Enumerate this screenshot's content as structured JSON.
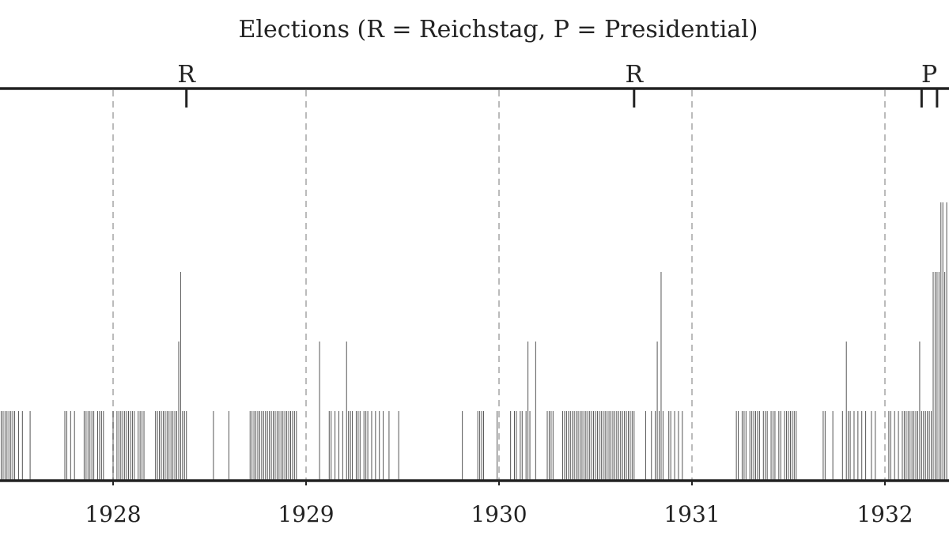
{
  "chart_data": {
    "type": "bar",
    "title": "Elections (R = Reichstag, P = Presidential)",
    "xlabel": "",
    "ylabel": "",
    "xlim": [
      1927.42,
      1932.33
    ],
    "ylim": [
      0,
      4.2
    ],
    "grid": "vertical dashed at year boundaries",
    "x_ticks": [
      "1928",
      "1929",
      "1930",
      "1931",
      "1932"
    ],
    "elections": [
      {
        "label": "R",
        "date": "1928-05-20",
        "x": 1928.38
      },
      {
        "label": "R",
        "date": "1930-09-14",
        "x": 1930.7
      },
      {
        "label": "P",
        "date": "1932-03-13",
        "x": 1932.19
      },
      {
        "label": "P",
        "date": "1932-04-10",
        "x": 1932.27
      }
    ],
    "series": [
      {
        "values": [
          [
            1927.42,
            1
          ],
          [
            1927.43,
            1
          ],
          [
            1927.44,
            1
          ],
          [
            1927.45,
            1
          ],
          [
            1927.46,
            1
          ],
          [
            1927.47,
            1
          ],
          [
            1927.48,
            1
          ],
          [
            1927.49,
            1
          ],
          [
            1927.51,
            1
          ],
          [
            1927.53,
            1
          ],
          [
            1927.57,
            1
          ],
          [
            1927.75,
            1
          ],
          [
            1927.76,
            1
          ],
          [
            1927.78,
            1
          ],
          [
            1927.8,
            1
          ],
          [
            1927.85,
            1
          ],
          [
            1927.86,
            1
          ],
          [
            1927.87,
            1
          ],
          [
            1927.88,
            1
          ],
          [
            1927.89,
            1
          ],
          [
            1927.9,
            1
          ],
          [
            1927.92,
            1
          ],
          [
            1927.93,
            1
          ],
          [
            1927.94,
            1
          ],
          [
            1927.95,
            1
          ],
          [
            1928.0,
            1
          ],
          [
            1928.02,
            1
          ],
          [
            1928.03,
            1
          ],
          [
            1928.04,
            1
          ],
          [
            1928.05,
            1
          ],
          [
            1928.06,
            1
          ],
          [
            1928.07,
            1
          ],
          [
            1928.08,
            1
          ],
          [
            1928.09,
            1
          ],
          [
            1928.1,
            1
          ],
          [
            1928.11,
            1
          ],
          [
            1928.13,
            1
          ],
          [
            1928.14,
            1
          ],
          [
            1928.15,
            1
          ],
          [
            1928.16,
            1
          ],
          [
            1928.22,
            1
          ],
          [
            1928.23,
            1
          ],
          [
            1928.24,
            1
          ],
          [
            1928.25,
            1
          ],
          [
            1928.26,
            1
          ],
          [
            1928.27,
            1
          ],
          [
            1928.28,
            1
          ],
          [
            1928.29,
            1
          ],
          [
            1928.3,
            1
          ],
          [
            1928.31,
            1
          ],
          [
            1928.32,
            1
          ],
          [
            1928.33,
            1
          ],
          [
            1928.34,
            2
          ],
          [
            1928.35,
            3
          ],
          [
            1928.36,
            1
          ],
          [
            1928.37,
            1
          ],
          [
            1928.38,
            1
          ],
          [
            1928.52,
            1
          ],
          [
            1928.6,
            1
          ],
          [
            1928.71,
            1
          ],
          [
            1928.72,
            1
          ],
          [
            1928.73,
            1
          ],
          [
            1928.74,
            1
          ],
          [
            1928.75,
            1
          ],
          [
            1928.76,
            1
          ],
          [
            1928.77,
            1
          ],
          [
            1928.78,
            1
          ],
          [
            1928.79,
            1
          ],
          [
            1928.8,
            1
          ],
          [
            1928.81,
            1
          ],
          [
            1928.82,
            1
          ],
          [
            1928.83,
            1
          ],
          [
            1928.84,
            1
          ],
          [
            1928.85,
            1
          ],
          [
            1928.86,
            1
          ],
          [
            1928.87,
            1
          ],
          [
            1928.88,
            1
          ],
          [
            1928.89,
            1
          ],
          [
            1928.9,
            1
          ],
          [
            1928.91,
            1
          ],
          [
            1928.92,
            1
          ],
          [
            1928.93,
            1
          ],
          [
            1928.94,
            1
          ],
          [
            1928.95,
            1
          ],
          [
            1929.07,
            2
          ],
          [
            1929.12,
            1
          ],
          [
            1929.13,
            1
          ],
          [
            1929.15,
            1
          ],
          [
            1929.17,
            1
          ],
          [
            1929.19,
            1
          ],
          [
            1929.21,
            2
          ],
          [
            1929.22,
            1
          ],
          [
            1929.23,
            1
          ],
          [
            1929.24,
            1
          ],
          [
            1929.26,
            1
          ],
          [
            1929.27,
            1
          ],
          [
            1929.28,
            1
          ],
          [
            1929.3,
            1
          ],
          [
            1929.31,
            1
          ],
          [
            1929.32,
            1
          ],
          [
            1929.34,
            1
          ],
          [
            1929.36,
            1
          ],
          [
            1929.38,
            1
          ],
          [
            1929.4,
            1
          ],
          [
            1929.43,
            1
          ],
          [
            1929.48,
            1
          ],
          [
            1929.81,
            1
          ],
          [
            1929.89,
            1
          ],
          [
            1929.9,
            1
          ],
          [
            1929.91,
            1
          ],
          [
            1929.92,
            1
          ],
          [
            1929.99,
            1
          ],
          [
            1930.06,
            1
          ],
          [
            1930.08,
            1
          ],
          [
            1930.09,
            1
          ],
          [
            1930.11,
            1
          ],
          [
            1930.12,
            1
          ],
          [
            1930.14,
            1
          ],
          [
            1930.15,
            2
          ],
          [
            1930.16,
            1
          ],
          [
            1930.19,
            2
          ],
          [
            1930.25,
            1
          ],
          [
            1930.26,
            1
          ],
          [
            1930.27,
            1
          ],
          [
            1930.28,
            1
          ],
          [
            1930.33,
            1
          ],
          [
            1930.34,
            1
          ],
          [
            1930.35,
            1
          ],
          [
            1930.36,
            1
          ],
          [
            1930.37,
            1
          ],
          [
            1930.38,
            1
          ],
          [
            1930.39,
            1
          ],
          [
            1930.4,
            1
          ],
          [
            1930.41,
            1
          ],
          [
            1930.42,
            1
          ],
          [
            1930.43,
            1
          ],
          [
            1930.44,
            1
          ],
          [
            1930.45,
            1
          ],
          [
            1930.46,
            1
          ],
          [
            1930.47,
            1
          ],
          [
            1930.48,
            1
          ],
          [
            1930.49,
            1
          ],
          [
            1930.5,
            1
          ],
          [
            1930.51,
            1
          ],
          [
            1930.52,
            1
          ],
          [
            1930.53,
            1
          ],
          [
            1930.54,
            1
          ],
          [
            1930.55,
            1
          ],
          [
            1930.56,
            1
          ],
          [
            1930.57,
            1
          ],
          [
            1930.58,
            1
          ],
          [
            1930.59,
            1
          ],
          [
            1930.6,
            1
          ],
          [
            1930.61,
            1
          ],
          [
            1930.62,
            1
          ],
          [
            1930.63,
            1
          ],
          [
            1930.64,
            1
          ],
          [
            1930.65,
            1
          ],
          [
            1930.66,
            1
          ],
          [
            1930.67,
            1
          ],
          [
            1930.68,
            1
          ],
          [
            1930.69,
            1
          ],
          [
            1930.7,
            1
          ],
          [
            1930.76,
            1
          ],
          [
            1930.79,
            1
          ],
          [
            1930.81,
            1
          ],
          [
            1930.82,
            2
          ],
          [
            1930.83,
            1
          ],
          [
            1930.84,
            3
          ],
          [
            1930.85,
            1
          ],
          [
            1930.88,
            1
          ],
          [
            1930.89,
            1
          ],
          [
            1930.91,
            1
          ],
          [
            1930.93,
            1
          ],
          [
            1930.95,
            1
          ],
          [
            1931.23,
            1
          ],
          [
            1931.24,
            1
          ],
          [
            1931.26,
            1
          ],
          [
            1931.27,
            1
          ],
          [
            1931.28,
            1
          ],
          [
            1931.3,
            1
          ],
          [
            1931.31,
            1
          ],
          [
            1931.32,
            1
          ],
          [
            1931.33,
            1
          ],
          [
            1931.34,
            1
          ],
          [
            1931.35,
            1
          ],
          [
            1931.37,
            1
          ],
          [
            1931.38,
            1
          ],
          [
            1931.39,
            1
          ],
          [
            1931.41,
            1
          ],
          [
            1931.42,
            1
          ],
          [
            1931.43,
            1
          ],
          [
            1931.45,
            1
          ],
          [
            1931.46,
            1
          ],
          [
            1931.48,
            1
          ],
          [
            1931.49,
            1
          ],
          [
            1931.5,
            1
          ],
          [
            1931.51,
            1
          ],
          [
            1931.52,
            1
          ],
          [
            1931.53,
            1
          ],
          [
            1931.54,
            1
          ],
          [
            1931.68,
            1
          ],
          [
            1931.69,
            1
          ],
          [
            1931.73,
            1
          ],
          [
            1931.78,
            1
          ],
          [
            1931.8,
            2
          ],
          [
            1931.81,
            1
          ],
          [
            1931.82,
            1
          ],
          [
            1931.84,
            1
          ],
          [
            1931.86,
            1
          ],
          [
            1931.88,
            1
          ],
          [
            1931.9,
            1
          ],
          [
            1931.93,
            1
          ],
          [
            1931.95,
            1
          ],
          [
            1932.02,
            1
          ],
          [
            1932.03,
            1
          ],
          [
            1932.05,
            1
          ],
          [
            1932.07,
            1
          ],
          [
            1932.09,
            1
          ],
          [
            1932.1,
            1
          ],
          [
            1932.11,
            1
          ],
          [
            1932.12,
            1
          ],
          [
            1932.13,
            1
          ],
          [
            1932.14,
            1
          ],
          [
            1932.15,
            1
          ],
          [
            1932.16,
            1
          ],
          [
            1932.17,
            1
          ],
          [
            1932.18,
            2
          ],
          [
            1932.19,
            1
          ],
          [
            1932.2,
            1
          ],
          [
            1932.21,
            1
          ],
          [
            1932.22,
            1
          ],
          [
            1932.23,
            1
          ],
          [
            1932.24,
            1
          ],
          [
            1932.25,
            3
          ],
          [
            1932.26,
            3
          ],
          [
            1932.27,
            3
          ],
          [
            1932.28,
            3
          ],
          [
            1932.29,
            4
          ],
          [
            1932.3,
            4
          ],
          [
            1932.31,
            3
          ],
          [
            1932.32,
            4
          ]
        ]
      }
    ]
  },
  "colors": {
    "bar": "#555555",
    "axis": "#222222",
    "grid": "#bbbbbb",
    "text": "#222222",
    "background": "#ffffff"
  }
}
